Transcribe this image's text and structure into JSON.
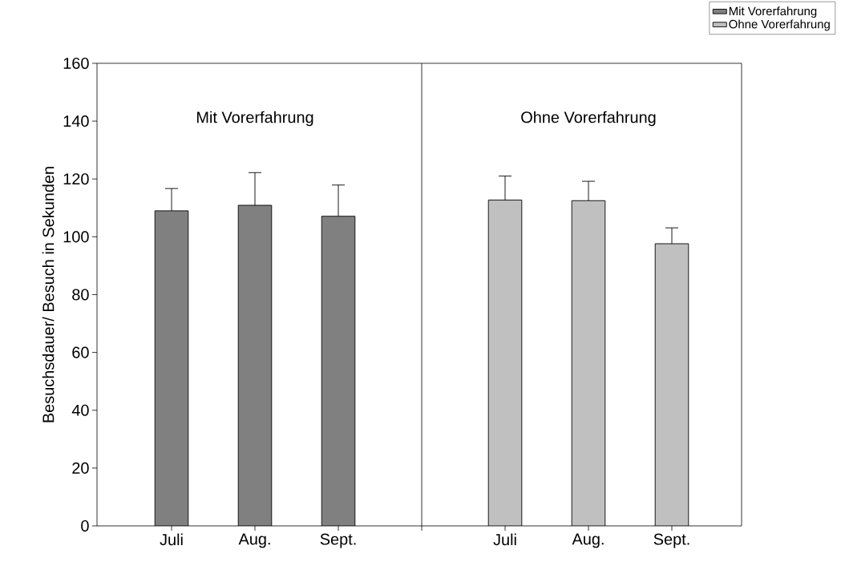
{
  "chart_data": {
    "type": "bar",
    "ylabel": "Besuchsdauer/ Besuch in Sekunden",
    "categories": [
      "Juli",
      "Aug.",
      "Sept.",
      null,
      "Juli",
      "Aug.",
      "Sept."
    ],
    "series": [
      {
        "name": "Mit Vorerfahrung",
        "color": "#808080",
        "values": [
          109.0,
          110.9,
          107.1,
          null,
          null,
          null,
          null
        ],
        "errors": [
          [
            109.0,
            116.7
          ],
          [
            110.9,
            122.2
          ],
          [
            107.1,
            117.9
          ],
          null,
          null,
          null,
          null
        ]
      },
      {
        "name": "Ohne Vorerfahrung",
        "color": "#c0c0c0",
        "values": [
          null,
          null,
          null,
          null,
          112.7,
          112.5,
          97.6
        ],
        "errors": [
          null,
          null,
          null,
          null,
          [
            112.7,
            121.0
          ],
          [
            112.5,
            119.2
          ],
          [
            97.6,
            103.1
          ]
        ]
      }
    ],
    "ylim": [
      0,
      160
    ],
    "yticks": [
      0,
      20,
      40,
      60,
      80,
      100,
      120,
      140,
      160
    ],
    "annotations": [
      "Mit Vorerfahrung",
      "Ohne Vorerfahrung"
    ],
    "legend": "top right"
  }
}
